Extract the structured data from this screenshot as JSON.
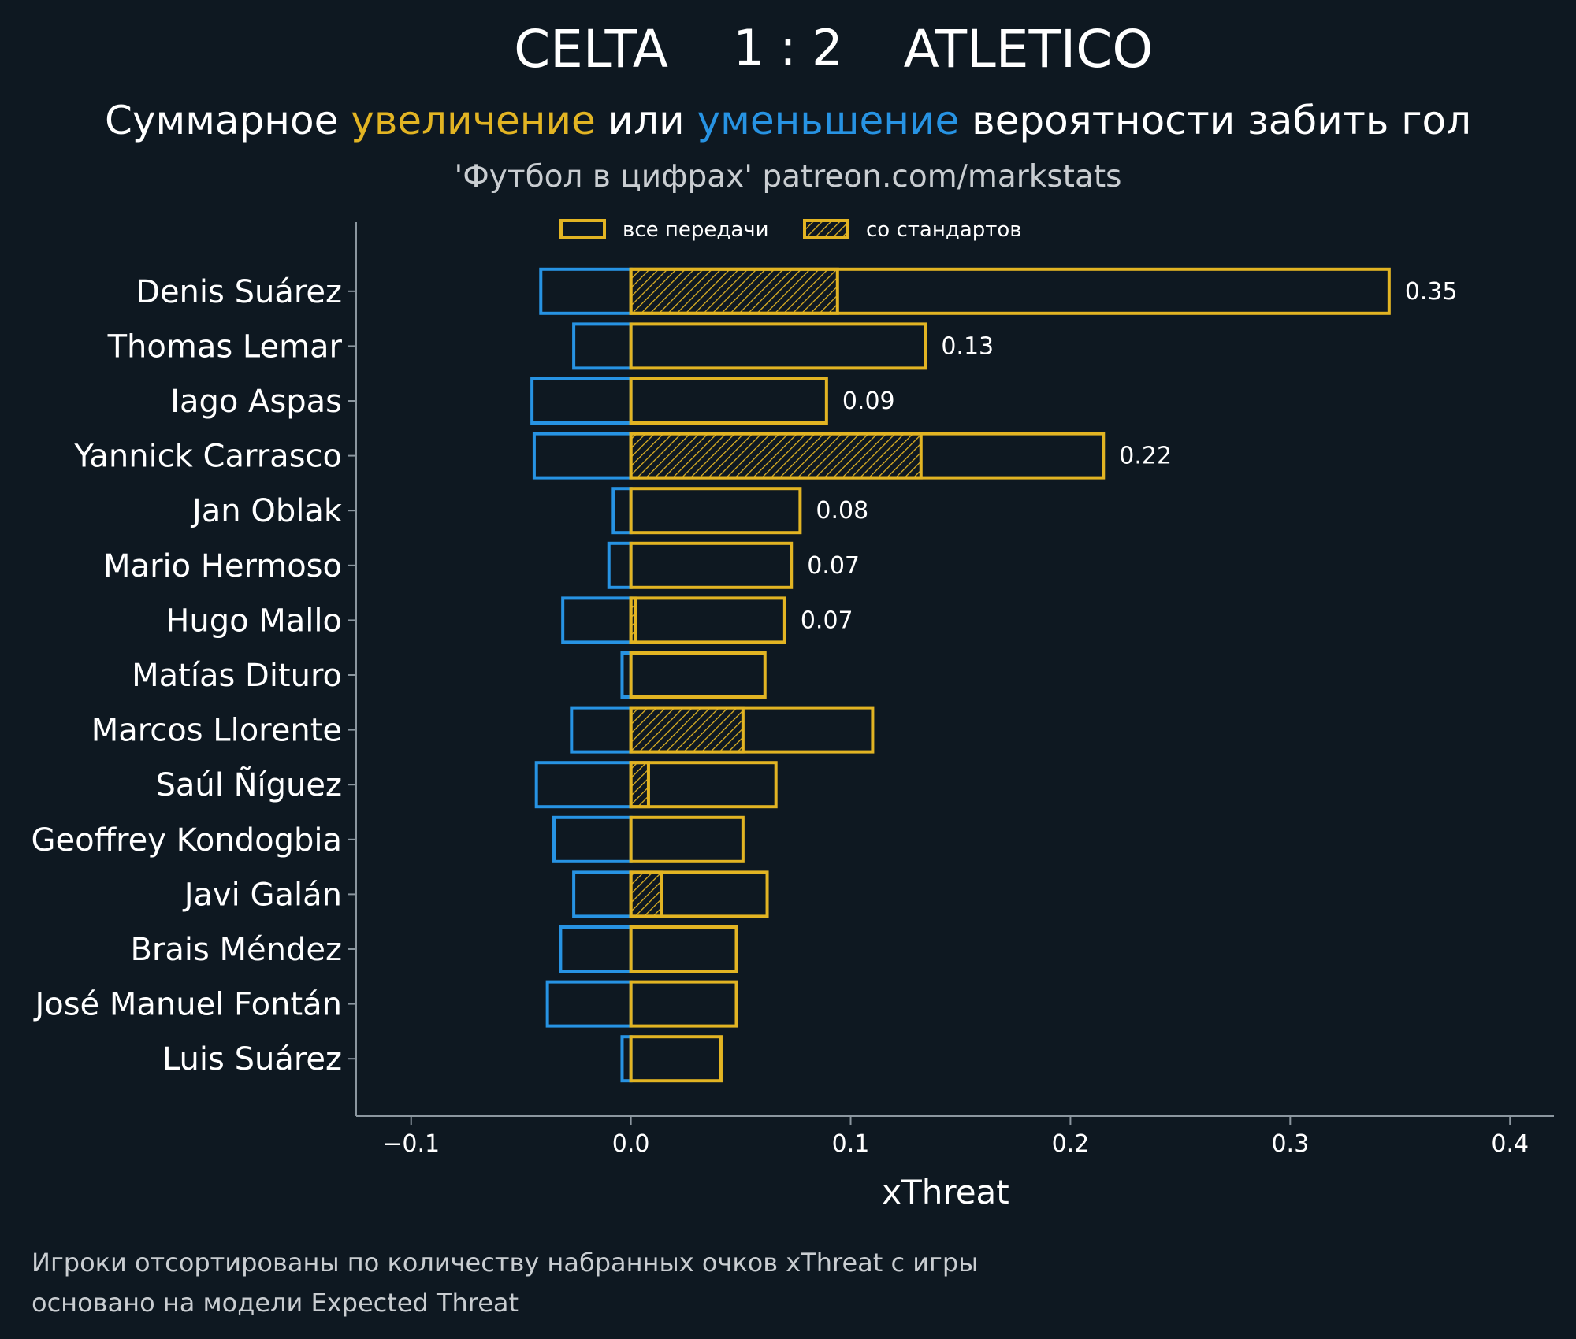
{
  "header": {
    "team_home": "CELTA",
    "score": "1 : 2",
    "team_away": "ATLETICO",
    "subtitle_part1": "Суммарное ",
    "subtitle_increase": "увеличение",
    "subtitle_part2": " или ",
    "subtitle_decrease": "уменьшение",
    "subtitle_part3": " вероятности забить гол",
    "source": "'Футбол в цифрах' patreon.com/markstats"
  },
  "footer": {
    "note_line1": "Игроки отсортированы по количеству набранных очков xThreat с игры",
    "note_line2": "основано на модели Expected Threat"
  },
  "colors": {
    "background": "#0e1821",
    "increase": "#e2b423",
    "decrease": "#2793e3",
    "text": "#ffffff",
    "muted": "#c9cdd1",
    "axis": "#8b969f"
  },
  "chart_data": {
    "type": "bar",
    "orientation": "horizontal",
    "xlabel": "xThreat",
    "xlim": [
      -0.125,
      0.42
    ],
    "xticks": [
      -0.1,
      0.0,
      0.1,
      0.2,
      0.3,
      0.4
    ],
    "xtick_labels": [
      "−0.1",
      "0.0",
      "0.1",
      "0.2",
      "0.3",
      "0.4"
    ],
    "grid": false,
    "legend_position": "top-center",
    "legend": [
      {
        "label": "все передачи",
        "style": "outline"
      },
      {
        "label": "со стандартов",
        "style": "hatched"
      }
    ],
    "categories": [
      "Denis Suárez",
      "Thomas Lemar",
      "Iago Aspas",
      "Yannick Carrasco",
      "Jan Oblak",
      "Mario Hermoso",
      "Hugo Mallo",
      "Matías Dituro",
      "Marcos Llorente",
      "Saúl Ñíguez",
      "Geoffrey Kondogbia",
      "Javi Galán",
      "Brais Méndez",
      "José Manuel Fontán",
      "Luis Suárez"
    ],
    "series": [
      {
        "role": "increase",
        "values": [
          0.345,
          0.134,
          0.089,
          0.215,
          0.077,
          0.073,
          0.07,
          0.061,
          0.11,
          0.066,
          0.051,
          0.062,
          0.048,
          0.048,
          0.041
        ]
      },
      {
        "role": "decrease",
        "values": [
          -0.041,
          -0.026,
          -0.045,
          -0.044,
          -0.008,
          -0.01,
          -0.031,
          -0.004,
          -0.027,
          -0.043,
          -0.035,
          -0.026,
          -0.032,
          -0.038,
          -0.004
        ]
      },
      {
        "role": "set_pieces",
        "values": [
          0.094,
          0,
          0,
          0.132,
          0,
          0,
          0.002,
          0,
          0.051,
          0.008,
          0,
          0.014,
          0,
          0,
          0
        ]
      }
    ],
    "value_labels": [
      "0.35",
      "0.13",
      "0.09",
      "0.22",
      "0.08",
      "0.07",
      "0.07",
      "",
      "",
      "",
      "",
      "",
      "",
      "",
      ""
    ]
  }
}
